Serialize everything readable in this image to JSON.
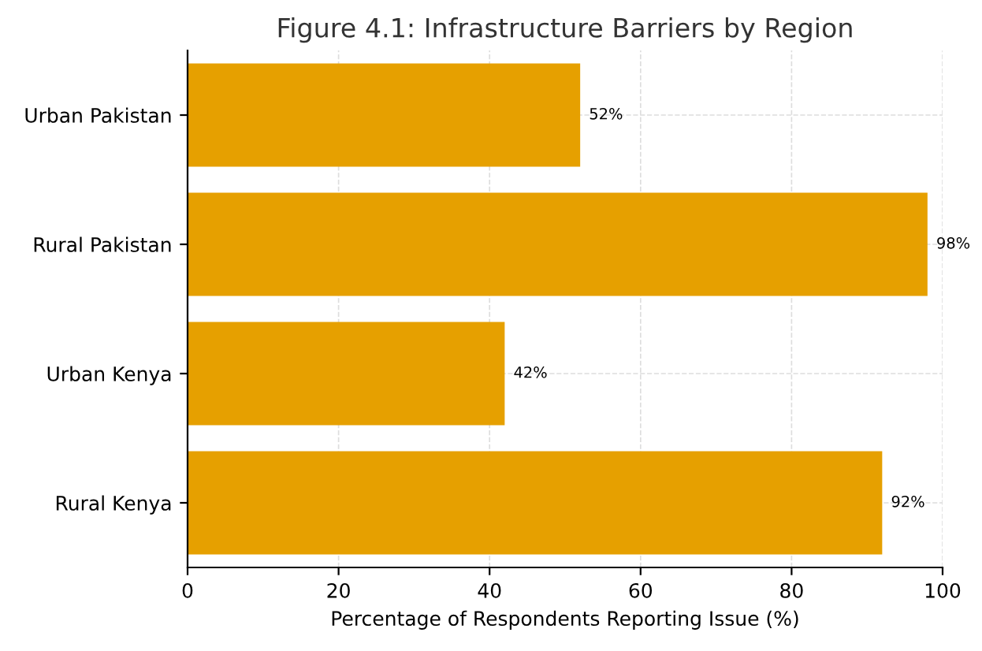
{
  "chart_data": {
    "type": "bar",
    "orientation": "horizontal",
    "title": "Figure 4.1: Infrastructure Barriers by Region",
    "xlabel": "Percentage of Respondents Reporting Issue (%)",
    "categories": [
      "Urban Pakistan",
      "Rural Pakistan",
      "Urban Kenya",
      "Rural Kenya"
    ],
    "values": [
      52,
      98,
      42,
      92
    ],
    "value_labels": [
      "52%",
      "98%",
      "42%",
      "92%"
    ],
    "color": "#e6a000",
    "xlim": [
      0,
      100
    ],
    "xticks": [
      0,
      20,
      40,
      60,
      80,
      100
    ],
    "grid": true
  }
}
